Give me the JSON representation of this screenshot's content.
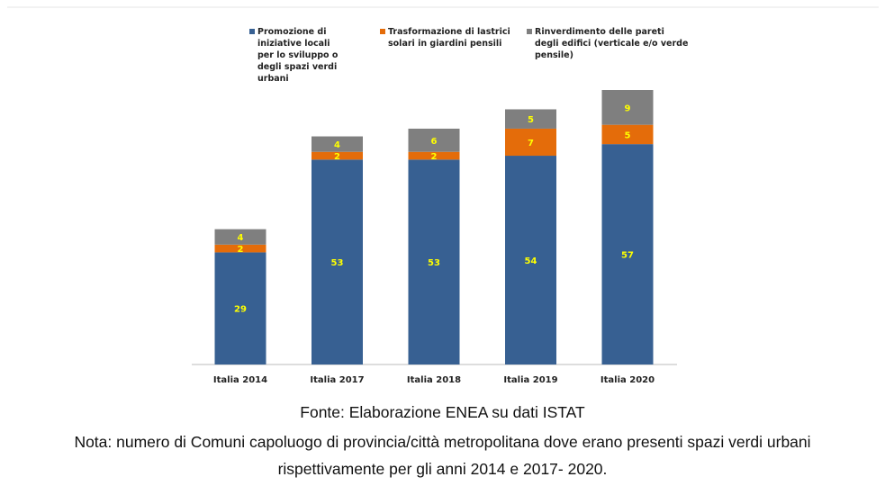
{
  "chart_data": {
    "type": "stacked_bar",
    "categories": [
      "Italia 2014",
      "Italia 2017",
      "Italia 2018",
      "Italia 2019",
      "Italia 2020"
    ],
    "series": [
      {
        "name": "Promozione di iniziative locali per lo sviluppo o degli spazi verdi urbani",
        "color": "#376092",
        "values": [
          29,
          53,
          53,
          54,
          57
        ]
      },
      {
        "name": "Trasformazione di lastrici solari in giardini pensili",
        "color": "#e46c0a",
        "values": [
          2,
          2,
          2,
          7,
          5
        ]
      },
      {
        "name": "Rinverdimento delle pareti degli edifici (verticale e/o verde pensile)",
        "color": "#7f7f7f",
        "values": [
          4,
          4,
          6,
          5,
          9
        ]
      }
    ],
    "value_label_color": "#ffff00",
    "source": "Fonte: Elaborazione ENEA su dati ISTAT",
    "note": [
      "Nota: numero di Comuni capoluogo di provincia/città metropolitana dove erano presenti spazi verdi urbani",
      "rispettivamente per gli anni 2014 e 2017- 2020."
    ]
  }
}
